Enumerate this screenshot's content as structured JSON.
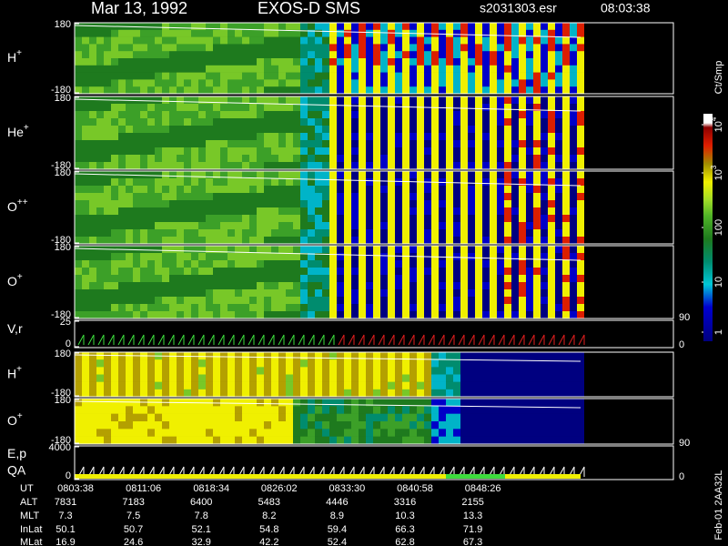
{
  "header": {
    "date": "Mar 13, 1992",
    "instrument": "EXOS-D SMS",
    "file": "s2031303.esr",
    "time": "08:03:38"
  },
  "panels": [
    {
      "label": "H",
      "sup": "+",
      "ticks": [
        "180",
        "-180"
      ]
    },
    {
      "label": "He",
      "sup": "+",
      "ticks": [
        "180",
        "-180"
      ]
    },
    {
      "label": "O",
      "sup": "++",
      "ticks": [
        "180",
        "-180"
      ]
    },
    {
      "label": "O",
      "sup": "+",
      "ticks": [
        "180",
        "-180"
      ]
    },
    {
      "label": "V,r",
      "ticks": [
        "25",
        "0"
      ],
      "right_ticks": [
        "90",
        "0"
      ]
    },
    {
      "label": "H",
      "sup": "+",
      "ticks": [
        "180",
        "-180"
      ]
    },
    {
      "label": "O",
      "sup": "+",
      "ticks": [
        "180",
        "-180"
      ]
    },
    {
      "label": "E,p",
      "label2": "QA",
      "ticks": [
        "4000",
        "0"
      ],
      "right_ticks": [
        "90",
        "0"
      ]
    }
  ],
  "colorbar": {
    "title": "Ct/Smp",
    "ticks": [
      {
        "base": "10",
        "sup": "4"
      },
      {
        "base": "10",
        "sup": "3"
      },
      {
        "base": "100"
      },
      {
        "base": "10"
      },
      {
        "base": "1"
      }
    ]
  },
  "table": {
    "row_labels": [
      "UT",
      "ALT",
      "MLT",
      "InLat",
      "MLat"
    ],
    "rows": [
      [
        "0803:38",
        "0811:06",
        "0818:34",
        "0826:02",
        "0833:30",
        "0840:58",
        "0848:26"
      ],
      [
        "7831",
        "7183",
        "6400",
        "5483",
        "4446",
        "3316",
        "2155"
      ],
      [
        "7.3",
        "7.5",
        "7.8",
        "8.2",
        "8.9",
        "10.3",
        "13.3"
      ],
      [
        "50.1",
        "50.7",
        "52.1",
        "54.8",
        "59.4",
        "66.3",
        "71.9"
      ],
      [
        "16.9",
        "24.6",
        "32.9",
        "42.2",
        "52.4",
        "62.8",
        "67.3"
      ]
    ]
  },
  "footer": "Feb-01 2AA32L"
}
